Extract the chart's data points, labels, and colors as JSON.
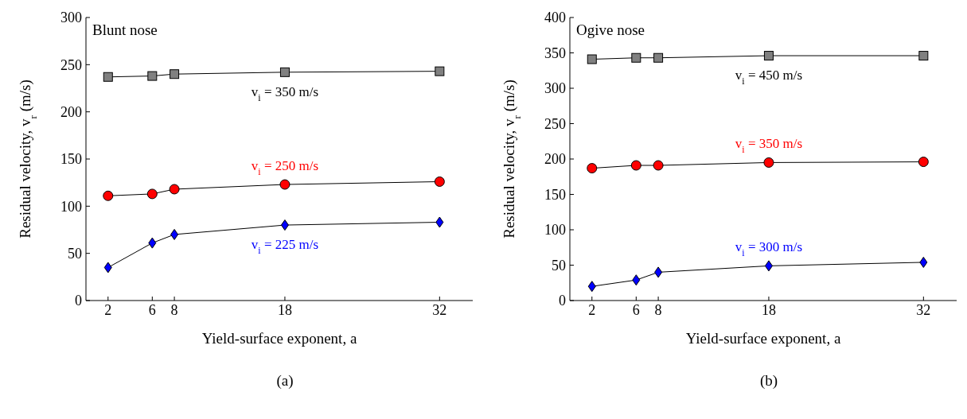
{
  "chart_data": [
    {
      "type": "line",
      "title": "Blunt nose",
      "xlabel": "Yield-surface exponent, a",
      "ylabel": "Residual velocity, v$_{r}$ (m/s)",
      "x": [
        2,
        6,
        8,
        18,
        32
      ],
      "xlim": [
        0,
        35
      ],
      "xticks": [
        2,
        6,
        8,
        18,
        32
      ],
      "ylim": [
        0,
        300
      ],
      "yticks": [
        0,
        50,
        100,
        150,
        200,
        250,
        300
      ],
      "series": [
        {
          "name": "v$_{i}$ = 350 m/s",
          "color": "#808080",
          "marker": "square",
          "values": [
            237,
            238,
            240,
            242,
            243
          ]
        },
        {
          "name": "v$_{i}$ = 250 m/s",
          "color": "#ff0000",
          "marker": "circle",
          "values": [
            111,
            113,
            118,
            123,
            126
          ]
        },
        {
          "name": "v$_{i}$ = 225 m/s",
          "color": "#0000ff",
          "marker": "diamond",
          "values": [
            35,
            61,
            70,
            80,
            83
          ]
        }
      ],
      "annotations": [
        "(a)"
      ]
    },
    {
      "type": "line",
      "title": "Ogive nose",
      "xlabel": "Yield-surface exponent, a",
      "ylabel": "Residual velocity, v$_{r}$ (m/s)",
      "x": [
        2,
        6,
        8,
        18,
        32
      ],
      "xlim": [
        0,
        35
      ],
      "xticks": [
        2,
        6,
        8,
        18,
        32
      ],
      "ylim": [
        0,
        400
      ],
      "yticks": [
        0,
        50,
        100,
        150,
        200,
        250,
        300,
        350,
        400
      ],
      "series": [
        {
          "name": "v$_{i}$ = 450 m/s",
          "color": "#808080",
          "marker": "square",
          "values": [
            341,
            343,
            343,
            346,
            346
          ]
        },
        {
          "name": "v$_{i}$ = 350 m/s",
          "color": "#ff0000",
          "marker": "circle",
          "values": [
            187,
            191,
            191,
            195,
            196
          ]
        },
        {
          "name": "v$_{i}$ = 300 m/s",
          "color": "#0000ff",
          "marker": "diamond",
          "values": [
            20,
            29,
            40,
            49,
            54
          ]
        }
      ],
      "annotations": [
        "(b)"
      ]
    }
  ]
}
